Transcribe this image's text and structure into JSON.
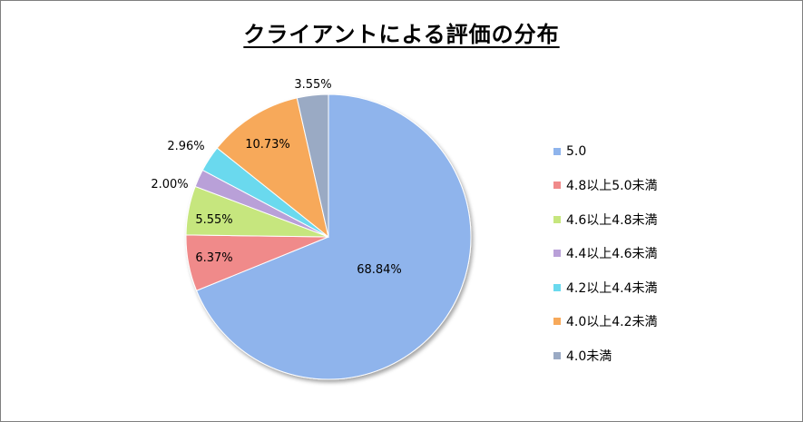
{
  "colors": {
    "5.0": "#8fb4ec",
    "4.8": "#f08a8a",
    "4.6": "#c6e67e",
    "4.4": "#b9a0d8",
    "4.2": "#6ad9ee",
    "4.0": "#f7a95a",
    "under4": "#9aaac4"
  },
  "chart_data": {
    "type": "pie",
    "title": "クライアントによる評価の分布",
    "legend_position": "right",
    "start_angle_deg": 0,
    "direction": "clockwise",
    "slices": [
      {
        "name": "5.0",
        "value": 68.84,
        "label": "68.84%",
        "color": "#8fb4ec"
      },
      {
        "name": "4.8以上5.0未満",
        "value": 6.37,
        "label": "6.37%",
        "color": "#f08a8a"
      },
      {
        "name": "4.6以上4.8未満",
        "value": 5.55,
        "label": "5.55%",
        "color": "#c6e67e"
      },
      {
        "name": "4.4以上4.6未満",
        "value": 2.0,
        "label": "2.00%",
        "color": "#b9a0d8"
      },
      {
        "name": "4.2以上4.4未満",
        "value": 2.96,
        "label": "2.96%",
        "color": "#6ad9ee"
      },
      {
        "name": "4.0以上4.2未満",
        "value": 10.73,
        "label": "10.73%",
        "color": "#f7a95a"
      },
      {
        "name": "4.0未満",
        "value": 3.55,
        "label": "3.55%",
        "color": "#9aaac4"
      }
    ]
  }
}
